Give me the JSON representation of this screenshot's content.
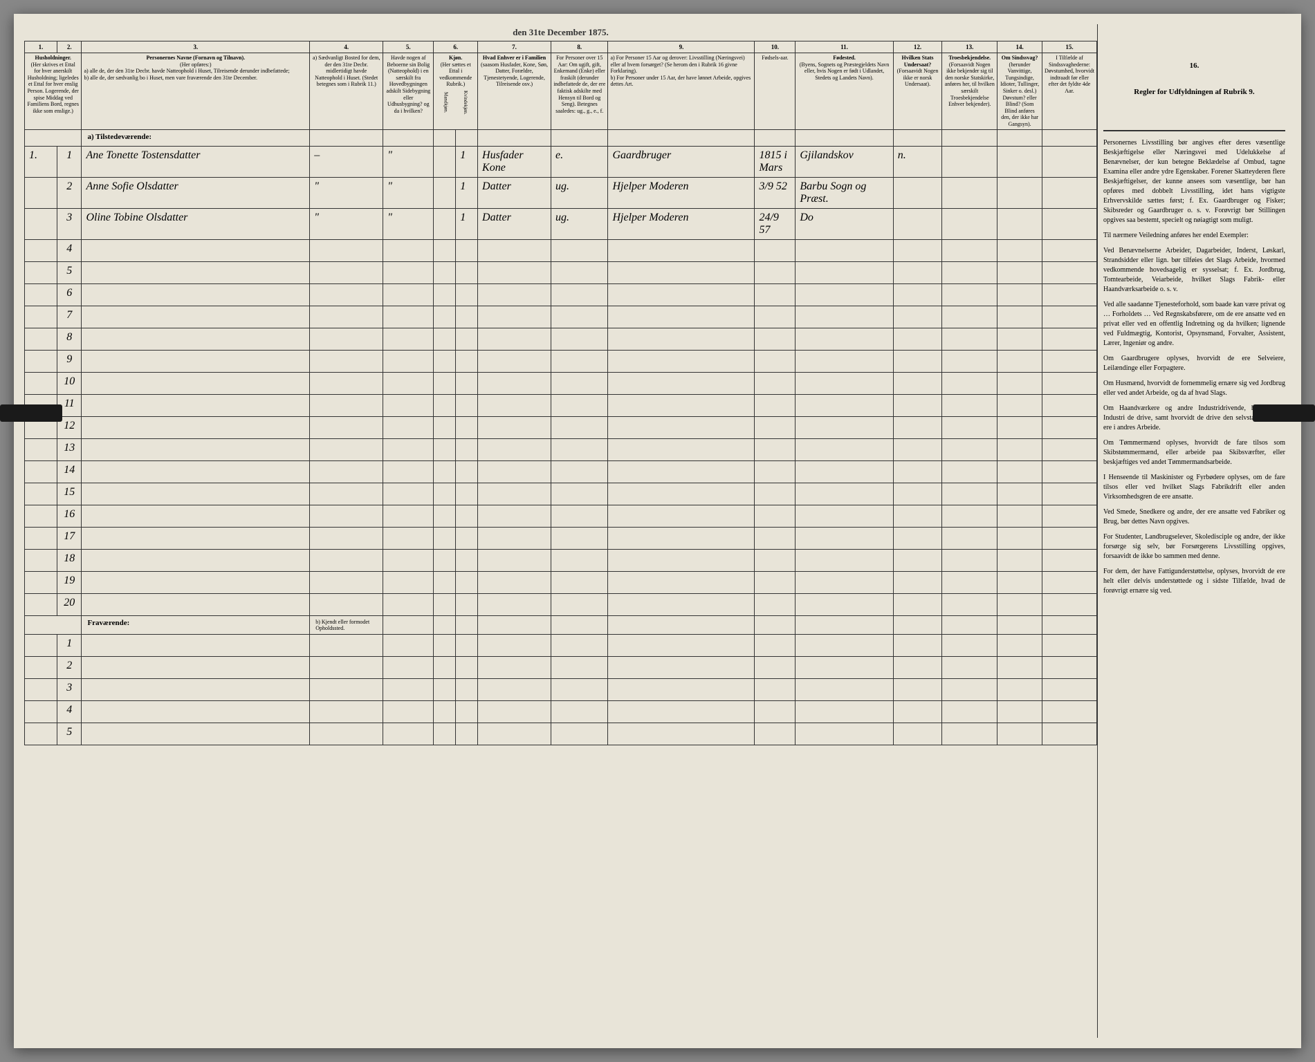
{
  "title": "den 31te December 1875.",
  "columns": {
    "c1": "1.",
    "c2": "2.",
    "c3": "3.",
    "c4": "4.",
    "c5": "5.",
    "c6": "6.",
    "c7": "7.",
    "c8": "8.",
    "c9": "9.",
    "c10": "10.",
    "c11": "11.",
    "c12": "12.",
    "c13": "13.",
    "c14": "14.",
    "c15": "15.",
    "c16": "16."
  },
  "headers": {
    "h1": "Husholdninger.",
    "h1_sub": "(Her skrives et Ettal for hver anerskilt Husholdning; ligeledes et Ettal for hver enslig Person. Logerende, der spise Middag ved Familiens Bord, regnes ikke som enslige.)",
    "h3": "Personernes Navne (Fornavn og Tilnavn).",
    "h3_sub": "(Her opføres:)",
    "h3_a": "a) alle de, der den 31te Decbr. havde Natteophold i Huset, Tilreisende derunder indbefattede;",
    "h3_b": "b) alle de, der sædvanlig bo i Huset, men vare fraværende den 31te December.",
    "h4": "a) Sædvanligt Bosted for dem, der den 31te Decbr. midlertidigt havde Natteophold i Huset. (Stedet betegnes som i Rubrik 11.)",
    "h5": "Havde nogen af Beboerne sin Bolig (Natteophold) i en særskilt fra Hovedbygningen adskilt Sidebygning eller Udhusbygning? og da i hvilken?",
    "h6": "Kjøn.",
    "h6_sub": "(Her sættes et Ettal i vedkommende Rubrik.)",
    "h6a": "Mandkjøn.",
    "h6b": "Kvindekjøn.",
    "h7": "Hvad Enhver er i Familien",
    "h7_sub": "(saasom Husfader, Kone, Søn, Datter, Forældre, Tjenestetyende, Logerende, Tilreisende osv.)",
    "h8": "For Personer over 15 Aar: Om ugift, gift, Enkemand (Enke) eller fraskilt (derunder indbefattede de, der ere faktisk adskilte med Hensyn til Bord og Seng). Betegnes saaledes: ug., g., e., f.",
    "h9_a": "a) For Personer 15 Aar og derover: Livsstilling (Næringsvei) eller af hvem forsørget? (Se herom den i Rubrik 16 givne Forklaring).",
    "h9_b": "b) For Personer under 15 Aar, der have lønnet Arbeide, opgives dettes Art.",
    "h10": "Fødsels-aar.",
    "h11": "Fødested.",
    "h11_sub": "(Byens, Sognets og Præstegjeldets Navn eller, hvis Nogen er født i Udlandet, Stedets og Landets Navn).",
    "h12": "Hvilken Stats Undersaat?",
    "h12_sub": "(Forsaavidt Nogen ikke er norsk Undersaat).",
    "h13": "Troesbekjendelse.",
    "h13_sub": "(Forsaavidt Nogen ikke bekjender sig til den norske Statskirke, anføres her, til hvilken særskilt Troesbekjendelse Enhver bekjender).",
    "h14": "Om Sindssvag?",
    "h14_sub": "(herunder Vanvittige, Tungsindige, Idioter, Tullinger, Sinker o. desl.) Døvstum? eller Blind? (Som Blind anføres den, der ikke har Gangsyn).",
    "h15": "I Tilfælde af Sindssvaghederne: Døvstumhed, hvorvidt indtraadt før eller efter det fyldte 4de Aar.",
    "h16": "Regler for Udfyldningen af Rubrik 9."
  },
  "sections": {
    "present": "a) Tilstedeværende:",
    "absent": "Fraværende:",
    "absent_col4": "b) Kjendt eller formodet Opholdssted."
  },
  "rows": {
    "present": [
      {
        "household": "1.",
        "num": "1",
        "name": "Ane Tonette Tostensdatter",
        "col4": "–",
        "col5": "\"",
        "sex": "1",
        "family": "Husfader Kone",
        "status": "e.",
        "occupation": "Gaardbruger",
        "birth": "1815 i Mars",
        "birthplace": "Gjilandskov",
        "col12": "n."
      },
      {
        "household": "",
        "num": "2",
        "name": "Anne Sofie Olsdatter",
        "col4": "\"",
        "col5": "\"",
        "sex": "1",
        "family": "Datter",
        "status": "ug.",
        "occupation": "Hjelper Moderen",
        "birth": "3/9 52",
        "birthplace": "Barbu Sogn og Præst.",
        "col12": ""
      },
      {
        "household": "",
        "num": "3",
        "name": "Oline Tobine Olsdatter",
        "col4": "\"",
        "col5": "\"",
        "sex": "1",
        "family": "Datter",
        "status": "ug.",
        "occupation": "Hjelper Moderen",
        "birth": "24/9 57",
        "birthplace": "Do",
        "col12": ""
      }
    ],
    "present_empty": [
      "4",
      "5",
      "6",
      "7",
      "8",
      "9",
      "10",
      "11",
      "12",
      "13",
      "14",
      "15",
      "16",
      "17",
      "18",
      "19",
      "20"
    ],
    "absent_empty": [
      "1",
      "2",
      "3",
      "4",
      "5"
    ]
  },
  "sidebar": {
    "p1": "Personernes Livsstilling bør angives efter deres væsentlige Beskjæftigelse eller Næringsvei med Udelukkelse af Benævnelser, der kun betegne Beklædelse af Ombud, tagne Examina eller andre ydre Egenskaber. Forener Skatteyderen flere Beskjæftigelser, der kunne ansees som væsentlige, bør han opføres med dobbelt Livsstilling, idet hans vigtigste Erhvervskilde sættes først; f. Ex. Gaardbruger og Fisker; Skibsreder og Gaardbruger o. s. v. Forøvrigt bør Stillingen opgives saa bestemt, specielt og nøiagtigt som muligt.",
    "p2": "Til nærmere Veiledning anføres her endel Exempler:",
    "p3": "Ved Benævnelserne Arbeider, Dagarbeider, Inderst, Løskarl, Strandsidder eller lign. bør tilføies det Slags Arbeide, hvormed vedkommende hovedsagelig er sysselsat; f. Ex. Jordbrug, Tomtearbeide, Veiarbeide, hvilket Slags Fabrik- eller Haandværksarbeide o. s. v.",
    "p4": "Ved alle saadanne Tjenesteforhold, som baade kan være privat og … Forholdets … Ved Regnskabsførere, om de ere ansatte ved en privat eller ved en offentlig Indretning og da hvilken; lignende ved Fuldmægtig, Kontorist, Opsynsmand, Forvalter, Assistent, Lærer, Ingeniør og andre.",
    "p5": "Om Gaardbrugere oplyses, hvorvidt de ere Selveiere, Leilændinge eller Forpagtere.",
    "p6": "Om Husmænd, hvorvidt de fornemmelig ernære sig ved Jordbrug eller ved andet Arbeide, og da af hvad Slags.",
    "p7": "Om Haandværkere og andre Industridrivende, hvad Slags Industri de drive, samt hvorvidt de drive den selvstændigt eller ere i andres Arbeide.",
    "p8": "Om Tømmermænd oplyses, hvorvidt de fare tilsos som Skibstømmermænd, eller arbeide paa Skibsværfter, eller beskjæftiges ved andet Tømmermandsarbeide.",
    "p9": "I Henseende til Maskinister og Fyrbødere oplyses, om de fare tilsos eller ved hvilket Slags Fabrikdrift eller anden Virksomhedsgren de ere ansatte.",
    "p10": "Ved Smede, Snedkere og andre, der ere ansatte ved Fabriker og Brug, bør dettes Navn opgives.",
    "p11": "For Studenter, Landbrugselever, Skoledisciple og andre, der ikke forsørge sig selv, bør Forsørgerens Livsstilling opgives, forsaavidt de ikke bo sammen med denne.",
    "p12": "For dem, der have Fattigunderstøttelse, oplyses, hvorvidt de ere helt eller delvis understøttede og i sidste Tilfælde, hvad de forøvrigt ernære sig ved."
  }
}
